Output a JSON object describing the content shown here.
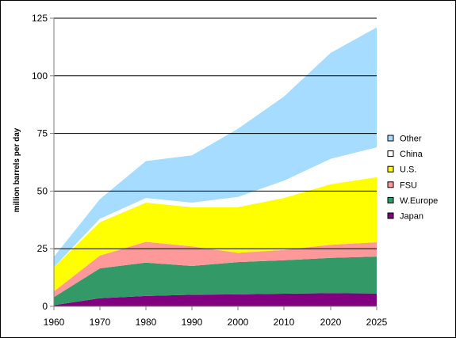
{
  "chart_data": {
    "type": "area",
    "stacked": true,
    "title": "",
    "xlabel": "",
    "ylabel": "million barrels per day",
    "x": [
      "1960",
      "1970",
      "1980",
      "1990",
      "2000",
      "2010",
      "2020",
      "2025"
    ],
    "ylim": [
      0,
      125
    ],
    "yticks": [
      0,
      25,
      50,
      75,
      100,
      125
    ],
    "grid": "horizontal gridlines every 25",
    "legend_position": "right",
    "series": [
      {
        "name": "Japan",
        "color": "#800080",
        "values": [
          0.5,
          3.5,
          4.5,
          5,
          5.2,
          5.5,
          5.7,
          5.6
        ]
      },
      {
        "name": "W.Europe",
        "color": "#339966",
        "values": [
          3.5,
          13.0,
          14.5,
          12.5,
          14.0,
          14.5,
          15.3,
          16.0
        ]
      },
      {
        "name": "FSU",
        "color": "#FF9999",
        "values": [
          2.5,
          5.5,
          9.0,
          8.5,
          4.0,
          4.5,
          5.7,
          6.2
        ]
      },
      {
        "name": "U.S.",
        "color": "#FFFF00",
        "values": [
          10.5,
          14.5,
          17.0,
          17.0,
          19.8,
          22.5,
          26.3,
          28.2
        ]
      },
      {
        "name": "China",
        "color": "#FFFFFF",
        "values": [
          0,
          1.5,
          2.0,
          2.0,
          4.5,
          7.5,
          11.0,
          13.0
        ]
      },
      {
        "name": "Other",
        "color": "#A6DCFF",
        "values": [
          4.5,
          8.5,
          16.0,
          20.5,
          29.5,
          36.5,
          46.0,
          52.0
        ]
      }
    ]
  }
}
